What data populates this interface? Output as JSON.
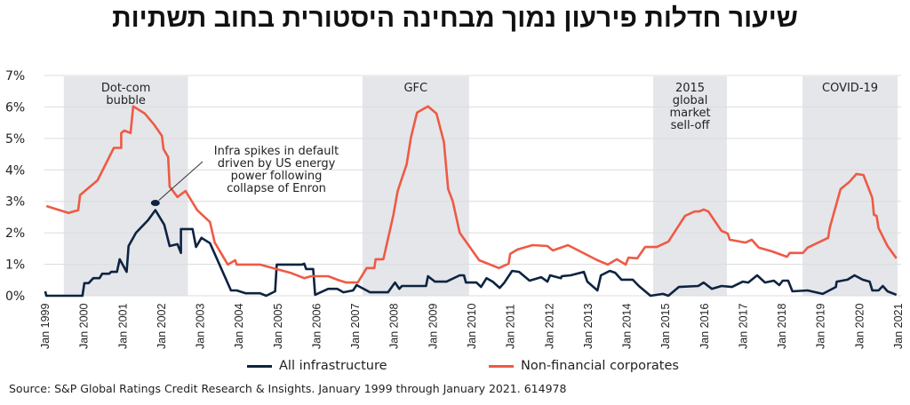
{
  "title": "שיעור חדלות פירעון נמוך מבחינה היסטורית בחוב תשתיות",
  "source": "Source: S&P Global Ratings Credit Research & Insights. January 1999 through January 2021. 614978",
  "chart_data": {
    "type": "line",
    "title": "שיעור חדלות פירעון נמוך מבחינה היסטורית בחוב תשתיות",
    "xlabel": "",
    "ylabel": "",
    "xlim": [
      1999,
      2021
    ],
    "ylim": [
      0,
      7
    ],
    "grid": true,
    "legend_placement": "bottom",
    "y_ticks": [
      "0%",
      "1%",
      "2%",
      "3%",
      "4%",
      "5%",
      "6%",
      "7%"
    ],
    "x_ticks": [
      "Jan 1999",
      "Jan 2000",
      "Jan 2001",
      "Jan 2002",
      "Jan 2003",
      "Jan 2004",
      "Jan 2005",
      "Jan 2006",
      "Jan 2007",
      "Jan 2008",
      "Jan 2009",
      "Jan 2010",
      "Jan 2011",
      "Jan 2012",
      "Jan 2013",
      "Jan 2014",
      "Jan 2015",
      "Jan 2016",
      "Jan 2017",
      "Jan 2018",
      "Jan 2019",
      "Jan 2020",
      "Jan 2021"
    ],
    "shaded_periods": [
      {
        "label_lines": [
          "Dot-com",
          "bubble"
        ],
        "start": 1999.5,
        "end": 2002.7
      },
      {
        "label_lines": [
          "GFC"
        ],
        "start": 2007.2,
        "end": 2009.95
      },
      {
        "label_lines": [
          "2015",
          "global",
          "market",
          "sell-off"
        ],
        "start": 2014.7,
        "end": 2016.6
      },
      {
        "label_lines": [
          "COVID-19"
        ],
        "start": 2018.55,
        "end": 2021.0
      }
    ],
    "annotation": {
      "lines": [
        "Infra spikes in default",
        "driven by US energy",
        "power following",
        "collapse of Enron"
      ],
      "point": [
        2001.86,
        2.95
      ]
    },
    "series": [
      {
        "name": "All infrastructure",
        "color": "#0d2340",
        "points": [
          [
            1999.02,
            0.14
          ],
          [
            1999.05,
            0.0
          ],
          [
            1999.98,
            0.0
          ],
          [
            2000.03,
            0.4
          ],
          [
            2000.14,
            0.4
          ],
          [
            2000.26,
            0.56
          ],
          [
            2000.42,
            0.56
          ],
          [
            2000.49,
            0.7
          ],
          [
            2000.67,
            0.7
          ],
          [
            2000.72,
            0.76
          ],
          [
            2000.87,
            0.76
          ],
          [
            2000.94,
            1.16
          ],
          [
            2001.12,
            0.76
          ],
          [
            2001.17,
            1.58
          ],
          [
            2001.36,
            2.0
          ],
          [
            2001.67,
            2.4
          ],
          [
            2001.86,
            2.72
          ],
          [
            2002.09,
            2.26
          ],
          [
            2002.23,
            1.58
          ],
          [
            2002.43,
            1.64
          ],
          [
            2002.52,
            1.36
          ],
          [
            2002.52,
            2.12
          ],
          [
            2002.82,
            2.12
          ],
          [
            2002.91,
            1.55
          ],
          [
            2003.05,
            1.84
          ],
          [
            2003.27,
            1.67
          ],
          [
            2003.81,
            0.17
          ],
          [
            2003.96,
            0.17
          ],
          [
            2004.19,
            0.08
          ],
          [
            2004.56,
            0.08
          ],
          [
            2004.72,
            0.0
          ],
          [
            2004.95,
            0.14
          ],
          [
            2004.99,
            0.99
          ],
          [
            2005.64,
            0.99
          ],
          [
            2005.7,
            1.02
          ],
          [
            2005.75,
            0.85
          ],
          [
            2005.93,
            0.85
          ],
          [
            2005.98,
            0.03
          ],
          [
            2006.32,
            0.22
          ],
          [
            2006.55,
            0.22
          ],
          [
            2006.71,
            0.11
          ],
          [
            2006.96,
            0.17
          ],
          [
            2007.05,
            0.34
          ],
          [
            2007.4,
            0.11
          ],
          [
            2007.86,
            0.11
          ],
          [
            2008.04,
            0.42
          ],
          [
            2008.15,
            0.22
          ],
          [
            2008.22,
            0.31
          ],
          [
            2008.84,
            0.31
          ],
          [
            2008.89,
            0.62
          ],
          [
            2009.07,
            0.45
          ],
          [
            2009.37,
            0.45
          ],
          [
            2009.71,
            0.65
          ],
          [
            2009.82,
            0.65
          ],
          [
            2009.87,
            0.42
          ],
          [
            2010.14,
            0.42
          ],
          [
            2010.26,
            0.28
          ],
          [
            2010.4,
            0.56
          ],
          [
            2010.56,
            0.45
          ],
          [
            2010.74,
            0.25
          ],
          [
            2010.85,
            0.4
          ],
          [
            2011.06,
            0.79
          ],
          [
            2011.24,
            0.76
          ],
          [
            2011.51,
            0.48
          ],
          [
            2011.81,
            0.59
          ],
          [
            2011.97,
            0.45
          ],
          [
            2012.04,
            0.65
          ],
          [
            2012.32,
            0.56
          ],
          [
            2012.34,
            0.62
          ],
          [
            2012.57,
            0.65
          ],
          [
            2012.91,
            0.76
          ],
          [
            2013.0,
            0.45
          ],
          [
            2013.26,
            0.17
          ],
          [
            2013.35,
            0.65
          ],
          [
            2013.58,
            0.79
          ],
          [
            2013.72,
            0.73
          ],
          [
            2013.88,
            0.51
          ],
          [
            2014.17,
            0.51
          ],
          [
            2014.33,
            0.31
          ],
          [
            2014.63,
            0.0
          ],
          [
            2014.95,
            0.06
          ],
          [
            2015.09,
            0.0
          ],
          [
            2015.36,
            0.28
          ],
          [
            2015.86,
            0.31
          ],
          [
            2016.0,
            0.42
          ],
          [
            2016.21,
            0.22
          ],
          [
            2016.46,
            0.31
          ],
          [
            2016.73,
            0.28
          ],
          [
            2017.01,
            0.45
          ],
          [
            2017.15,
            0.42
          ],
          [
            2017.38,
            0.65
          ],
          [
            2017.58,
            0.42
          ],
          [
            2017.81,
            0.48
          ],
          [
            2017.95,
            0.34
          ],
          [
            2018.04,
            0.48
          ],
          [
            2018.18,
            0.48
          ],
          [
            2018.29,
            0.14
          ],
          [
            2018.68,
            0.17
          ],
          [
            2019.07,
            0.06
          ],
          [
            2019.41,
            0.28
          ],
          [
            2019.43,
            0.45
          ],
          [
            2019.71,
            0.51
          ],
          [
            2019.89,
            0.65
          ],
          [
            2020.1,
            0.51
          ],
          [
            2020.28,
            0.45
          ],
          [
            2020.35,
            0.17
          ],
          [
            2020.51,
            0.17
          ],
          [
            2020.62,
            0.31
          ],
          [
            2020.74,
            0.14
          ],
          [
            2020.97,
            0.03
          ]
        ]
      },
      {
        "name": "Non-financial corporates",
        "color": "#ee5a45",
        "points": [
          [
            1999.05,
            2.85
          ],
          [
            1999.62,
            2.63
          ],
          [
            1999.87,
            2.72
          ],
          [
            1999.92,
            3.2
          ],
          [
            2000.37,
            3.67
          ],
          [
            2000.79,
            4.7
          ],
          [
            2000.98,
            4.7
          ],
          [
            2000.98,
            5.17
          ],
          [
            2001.06,
            5.25
          ],
          [
            2001.22,
            5.17
          ],
          [
            2001.29,
            6.02
          ],
          [
            2001.59,
            5.79
          ],
          [
            2001.82,
            5.45
          ],
          [
            2002.03,
            5.08
          ],
          [
            2002.07,
            4.66
          ],
          [
            2002.19,
            4.41
          ],
          [
            2002.23,
            3.47
          ],
          [
            2002.43,
            3.14
          ],
          [
            2002.64,
            3.33
          ],
          [
            2002.94,
            2.72
          ],
          [
            2003.27,
            2.34
          ],
          [
            2003.39,
            1.69
          ],
          [
            2003.73,
            0.99
          ],
          [
            2003.92,
            1.13
          ],
          [
            2003.96,
            0.99
          ],
          [
            2004.56,
            0.99
          ],
          [
            2004.88,
            0.88
          ],
          [
            2005.34,
            0.73
          ],
          [
            2005.7,
            0.56
          ],
          [
            2005.87,
            0.62
          ],
          [
            2006.32,
            0.62
          ],
          [
            2006.55,
            0.51
          ],
          [
            2006.78,
            0.42
          ],
          [
            2007.08,
            0.42
          ],
          [
            2007.31,
            0.88
          ],
          [
            2007.51,
            0.88
          ],
          [
            2007.54,
            1.16
          ],
          [
            2007.74,
            1.16
          ],
          [
            2008.0,
            2.57
          ],
          [
            2008.11,
            3.33
          ],
          [
            2008.34,
            4.18
          ],
          [
            2008.45,
            5.03
          ],
          [
            2008.61,
            5.82
          ],
          [
            2008.89,
            6.02
          ],
          [
            2009.11,
            5.79
          ],
          [
            2009.3,
            4.89
          ],
          [
            2009.41,
            3.39
          ],
          [
            2009.53,
            3.0
          ],
          [
            2009.71,
            2.0
          ],
          [
            2010.21,
            1.13
          ],
          [
            2010.72,
            0.88
          ],
          [
            2010.97,
            1.02
          ],
          [
            2011.01,
            1.33
          ],
          [
            2011.2,
            1.47
          ],
          [
            2011.59,
            1.61
          ],
          [
            2011.97,
            1.58
          ],
          [
            2012.11,
            1.44
          ],
          [
            2012.5,
            1.61
          ],
          [
            2013.26,
            1.13
          ],
          [
            2013.53,
            0.99
          ],
          [
            2013.76,
            1.16
          ],
          [
            2013.99,
            0.99
          ],
          [
            2014.06,
            1.21
          ],
          [
            2014.29,
            1.19
          ],
          [
            2014.49,
            1.55
          ],
          [
            2014.79,
            1.55
          ],
          [
            2015.09,
            1.72
          ],
          [
            2015.52,
            2.54
          ],
          [
            2015.77,
            2.68
          ],
          [
            2015.89,
            2.68
          ],
          [
            2016.0,
            2.74
          ],
          [
            2016.12,
            2.68
          ],
          [
            2016.46,
            2.06
          ],
          [
            2016.62,
            1.98
          ],
          [
            2016.67,
            1.78
          ],
          [
            2017.08,
            1.69
          ],
          [
            2017.24,
            1.78
          ],
          [
            2017.42,
            1.53
          ],
          [
            2017.76,
            1.41
          ],
          [
            2018.15,
            1.24
          ],
          [
            2018.22,
            1.36
          ],
          [
            2018.56,
            1.36
          ],
          [
            2018.68,
            1.53
          ],
          [
            2019.21,
            1.84
          ],
          [
            2019.25,
            2.15
          ],
          [
            2019.53,
            3.39
          ],
          [
            2019.76,
            3.62
          ],
          [
            2019.94,
            3.87
          ],
          [
            2020.12,
            3.84
          ],
          [
            2020.35,
            3.11
          ],
          [
            2020.39,
            2.57
          ],
          [
            2020.46,
            2.54
          ],
          [
            2020.51,
            2.15
          ],
          [
            2020.74,
            1.58
          ],
          [
            2020.97,
            1.19
          ]
        ]
      }
    ]
  }
}
